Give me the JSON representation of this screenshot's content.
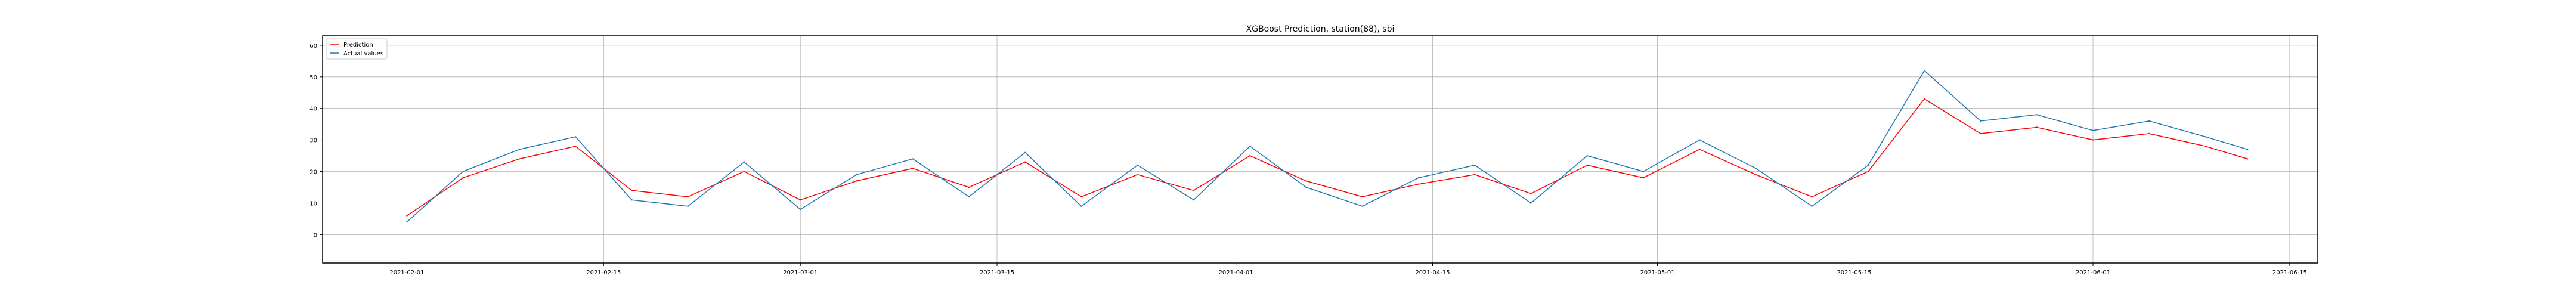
{
  "chart_data": {
    "type": "line",
    "title": "XGBoost Prediction, station(88), sbi",
    "xlabel": "",
    "ylabel": "",
    "x_range": [
      "2021-01-26",
      "2021-06-17"
    ],
    "x_ticks": [
      "2021-02-01",
      "2021-02-15",
      "2021-03-01",
      "2021-03-15",
      "2021-04-01",
      "2021-04-15",
      "2021-05-01",
      "2021-05-15",
      "2021-06-01",
      "2021-06-15"
    ],
    "ylim": [
      -9,
      63
    ],
    "y_ticks": [
      0,
      10,
      20,
      30,
      40,
      50,
      60
    ],
    "grid": true,
    "legend_position": "top-left",
    "x": [
      "2021-02-01",
      "2021-02-05",
      "2021-02-09",
      "2021-02-13",
      "2021-02-17",
      "2021-02-21",
      "2021-02-25",
      "2021-03-01",
      "2021-03-05",
      "2021-03-09",
      "2021-03-13",
      "2021-03-17",
      "2021-03-21",
      "2021-03-25",
      "2021-03-29",
      "2021-04-02",
      "2021-04-06",
      "2021-04-10",
      "2021-04-14",
      "2021-04-18",
      "2021-04-22",
      "2021-04-26",
      "2021-04-30",
      "2021-05-04",
      "2021-05-08",
      "2021-05-12",
      "2021-05-16",
      "2021-05-20",
      "2021-05-24",
      "2021-05-28",
      "2021-06-01",
      "2021-06-05",
      "2021-06-09",
      "2021-06-12"
    ],
    "series": [
      {
        "name": "Prediction",
        "color": "#ff0000",
        "values": [
          6,
          18,
          24,
          28,
          14,
          12,
          20,
          11,
          17,
          21,
          15,
          23,
          12,
          19,
          14,
          25,
          17,
          12,
          16,
          19,
          13,
          22,
          18,
          27,
          19,
          12,
          20,
          43,
          32,
          34,
          30,
          32,
          28,
          24
        ]
      },
      {
        "name": "Actual values",
        "color": "#1f77b4",
        "values": [
          4,
          20,
          27,
          31,
          11,
          9,
          23,
          8,
          19,
          24,
          12,
          26,
          9,
          22,
          11,
          28,
          15,
          9,
          18,
          22,
          10,
          25,
          20,
          30,
          21,
          9,
          22,
          52,
          36,
          38,
          33,
          36,
          31,
          27
        ]
      }
    ]
  }
}
